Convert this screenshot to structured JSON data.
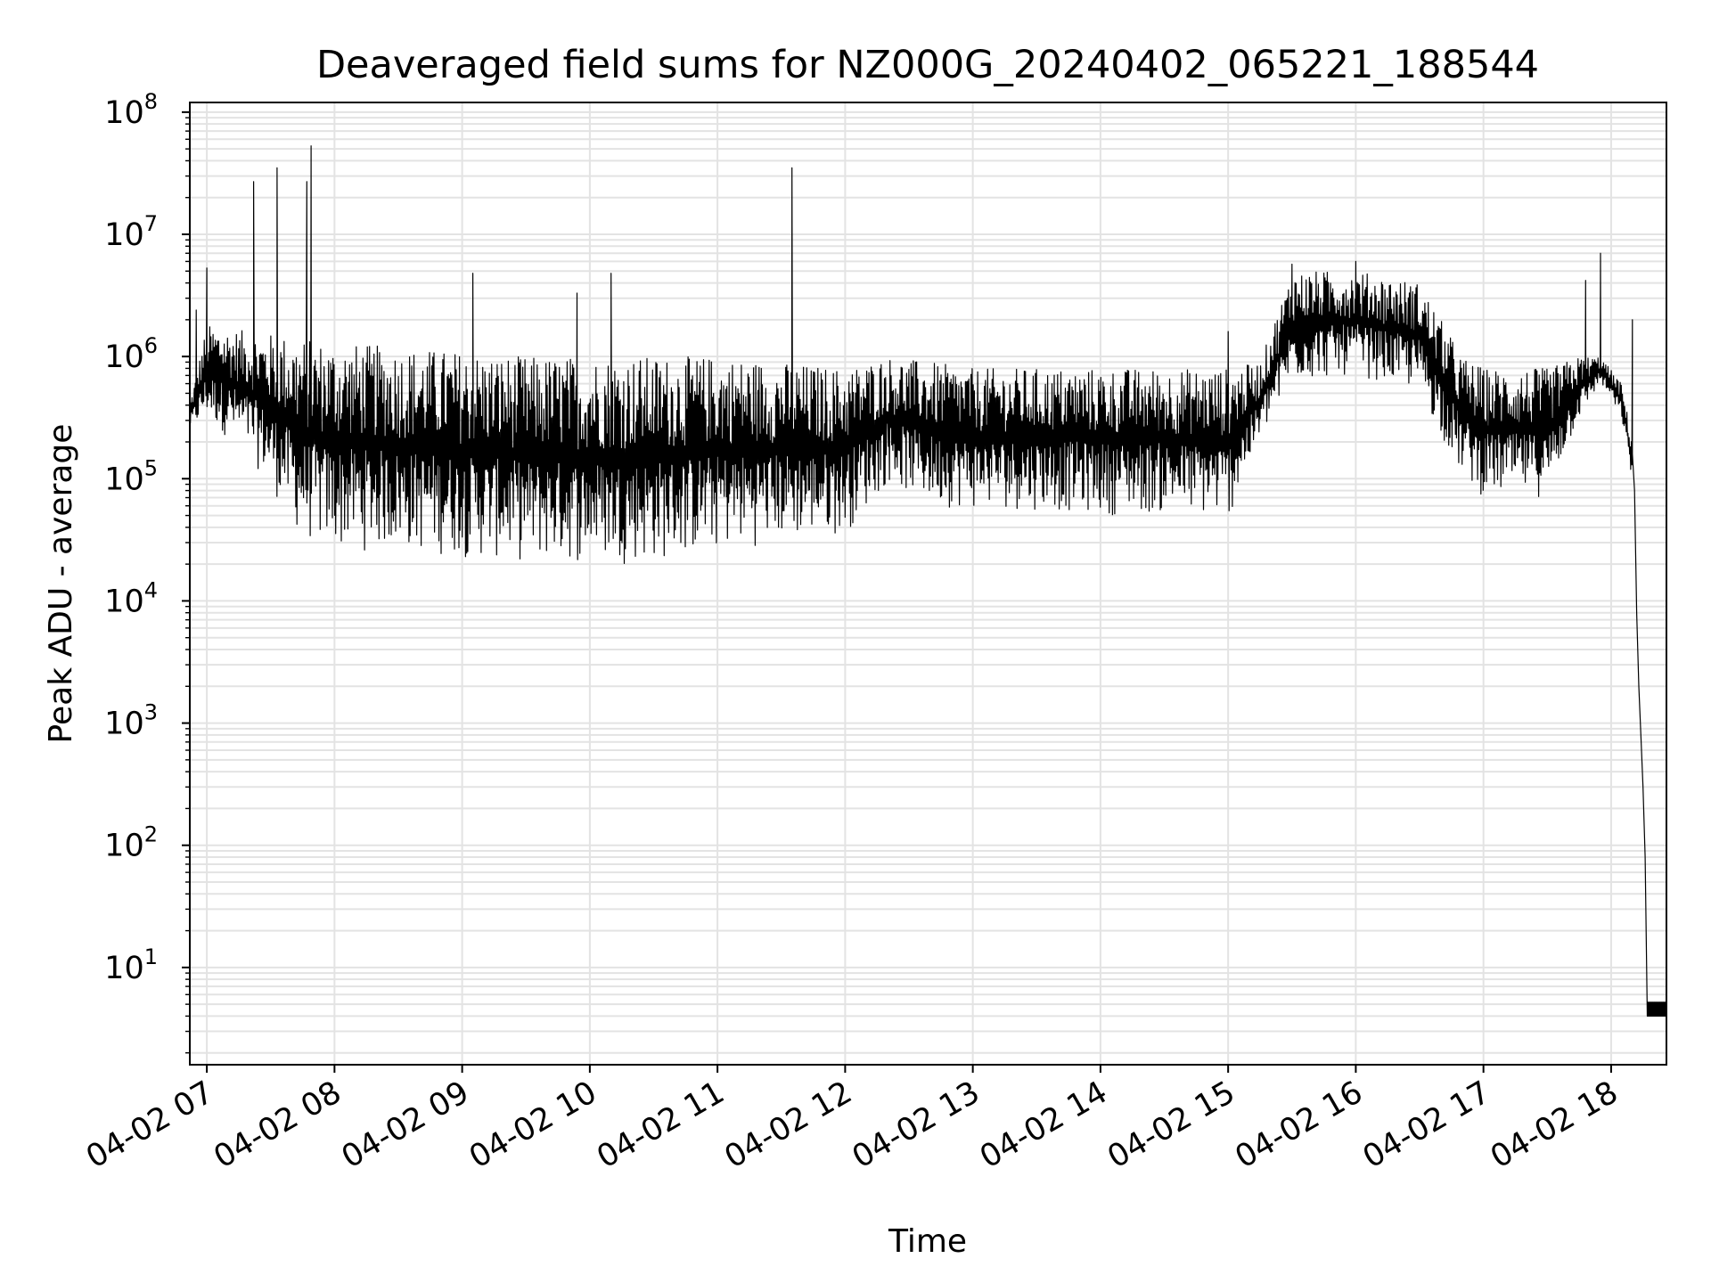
{
  "chart_data": {
    "type": "line",
    "title": "Deaveraged field sums for NZ000G_20240402_065221_188544",
    "xlabel": "Time",
    "ylabel": "Peak ADU - average",
    "x_axis_type": "time",
    "y_scale": "log",
    "ylim": [
      1.6,
      120000000
    ],
    "xlim": [
      "04-02 06:52",
      "04-02 18:26"
    ],
    "grid": true,
    "grid_minor": true,
    "legend": "none",
    "line_color": "#000000",
    "grid_color": "#e3e3e3",
    "x_ticks": [
      "04-02 07",
      "04-02 08",
      "04-02 09",
      "04-02 10",
      "04-02 11",
      "04-02 12",
      "04-02 13",
      "04-02 14",
      "04-02 15",
      "04-02 16",
      "04-02 17",
      "04-02 18"
    ],
    "y_ticks": [
      {
        "base": "10",
        "exp": "1",
        "value": 10
      },
      {
        "base": "10",
        "exp": "2",
        "value": 100
      },
      {
        "base": "10",
        "exp": "3",
        "value": 1000
      },
      {
        "base": "10",
        "exp": "4",
        "value": 10000
      },
      {
        "base": "10",
        "exp": "5",
        "value": 100000
      },
      {
        "base": "10",
        "exp": "6",
        "value": 1000000
      },
      {
        "base": "10",
        "exp": "7",
        "value": 10000000
      },
      {
        "base": "10",
        "exp": "8",
        "value": 100000000
      }
    ],
    "series": [
      {
        "envelope": [
          {
            "t": "06:52",
            "lo": 250000,
            "hi": 420000
          },
          {
            "t": "07:00",
            "lo": 300000,
            "hi": 1800000
          },
          {
            "t": "07:20",
            "lo": 150000,
            "hi": 1600000
          },
          {
            "t": "07:35",
            "lo": 60000,
            "hi": 1500000
          },
          {
            "t": "07:45",
            "lo": 30000,
            "hi": 1400000
          },
          {
            "t": "08:00",
            "lo": 25000,
            "hi": 1300000
          },
          {
            "t": "08:30",
            "lo": 25000,
            "hi": 1200000
          },
          {
            "t": "09:00",
            "lo": 22000,
            "hi": 1100000
          },
          {
            "t": "09:30",
            "lo": 20000,
            "hi": 1000000
          },
          {
            "t": "10:00",
            "lo": 20000,
            "hi": 1000000
          },
          {
            "t": "10:30",
            "lo": 20000,
            "hi": 1000000
          },
          {
            "t": "11:00",
            "lo": 25000,
            "hi": 1000000
          },
          {
            "t": "11:30",
            "lo": 30000,
            "hi": 900000
          },
          {
            "t": "12:00",
            "lo": 35000,
            "hi": 800000
          },
          {
            "t": "12:20",
            "lo": 90000,
            "hi": 1000000
          },
          {
            "t": "12:40",
            "lo": 60000,
            "hi": 900000
          },
          {
            "t": "13:00",
            "lo": 55000,
            "hi": 800000
          },
          {
            "t": "13:30",
            "lo": 55000,
            "hi": 800000
          },
          {
            "t": "14:00",
            "lo": 50000,
            "hi": 800000
          },
          {
            "t": "14:30",
            "lo": 50000,
            "hi": 800000
          },
          {
            "t": "15:00",
            "lo": 45000,
            "hi": 800000
          },
          {
            "t": "15:15",
            "lo": 200000,
            "hi": 900000
          },
          {
            "t": "15:30",
            "lo": 600000,
            "hi": 5000000
          },
          {
            "t": "16:00",
            "lo": 700000,
            "hi": 5000000
          },
          {
            "t": "16:30",
            "lo": 500000,
            "hi": 4000000
          },
          {
            "t": "16:50",
            "lo": 100000,
            "hi": 1000000
          },
          {
            "t": "17:00",
            "lo": 70000,
            "hi": 800000
          },
          {
            "t": "17:30",
            "lo": 70000,
            "hi": 800000
          },
          {
            "t": "17:45",
            "lo": 300000,
            "hi": 1000000
          },
          {
            "t": "17:55",
            "lo": 600000,
            "hi": 1000000
          },
          {
            "t": "18:05",
            "lo": 300000,
            "hi": 600000
          },
          {
            "t": "18:10",
            "lo": 90000,
            "hi": 200000
          }
        ],
        "tail": [
          {
            "t": "18:11",
            "value": 80000
          },
          {
            "t": "18:12",
            "value": 8000
          },
          {
            "t": "18:13",
            "value": 2000
          },
          {
            "t": "18:14",
            "value": 800
          },
          {
            "t": "18:15",
            "value": 300
          },
          {
            "t": "18:16",
            "value": 80
          },
          {
            "t": "18:17",
            "value": 4
          },
          {
            "t": "18:26",
            "value": 4
          }
        ],
        "spikes": [
          {
            "t": "06:55",
            "value": 2400000
          },
          {
            "t": "07:00",
            "value": 5300000
          },
          {
            "t": "07:22",
            "value": 27000000
          },
          {
            "t": "07:33",
            "value": 35000000
          },
          {
            "t": "07:47",
            "value": 27000000
          },
          {
            "t": "07:49",
            "value": 53000000
          },
          {
            "t": "09:05",
            "value": 4800000
          },
          {
            "t": "09:54",
            "value": 3300000
          },
          {
            "t": "10:10",
            "value": 4800000
          },
          {
            "t": "11:35",
            "value": 35000000
          },
          {
            "t": "15:00",
            "value": 1600000
          },
          {
            "t": "15:30",
            "value": 5700000
          },
          {
            "t": "16:00",
            "value": 6000000
          },
          {
            "t": "17:48",
            "value": 4200000
          },
          {
            "t": "17:55",
            "value": 7000000
          },
          {
            "t": "18:10",
            "value": 2000000
          }
        ]
      }
    ]
  }
}
